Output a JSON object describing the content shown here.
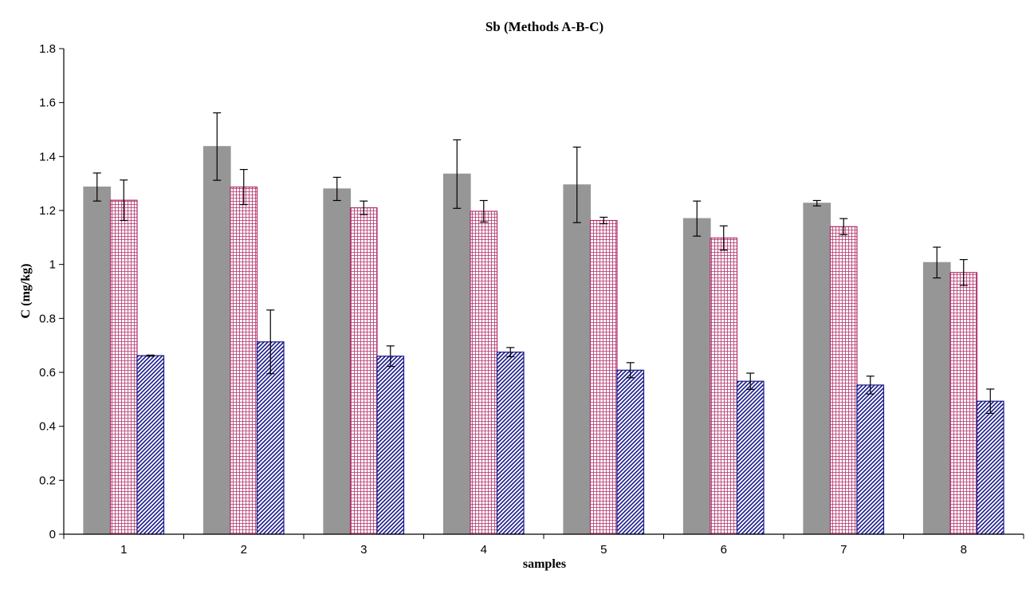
{
  "chart_data": {
    "type": "bar",
    "title": "Sb (Methods A-B-C)",
    "xlabel": "samples",
    "ylabel": "C (mg/kg)",
    "ylim": [
      0,
      1.8
    ],
    "yticks": [
      "0",
      "0.2",
      "0.4",
      "0.6",
      "0.8",
      "1",
      "1.2",
      "1.4",
      "1.6",
      "1.8"
    ],
    "categories": [
      "1",
      "2",
      "3",
      "4",
      "5",
      "6",
      "7",
      "8"
    ],
    "grid": false,
    "series": [
      {
        "values": [
          1.287,
          1.437,
          1.28,
          1.335,
          1.295,
          1.17,
          1.227,
          1.007
        ],
        "errors": [
          0.052,
          0.125,
          0.043,
          0.127,
          0.14,
          0.065,
          0.01,
          0.057
        ],
        "color": "#969696",
        "pattern": "solid"
      },
      {
        "values": [
          1.238,
          1.287,
          1.21,
          1.197,
          1.163,
          1.098,
          1.14,
          0.97
        ],
        "errors": [
          0.075,
          0.065,
          0.025,
          0.04,
          0.012,
          0.045,
          0.03,
          0.048
        ],
        "color": "#b0306a",
        "pattern": "grid"
      },
      {
        "values": [
          0.662,
          0.713,
          0.66,
          0.675,
          0.608,
          0.567,
          0.553,
          0.493
        ],
        "errors": [
          0.002,
          0.118,
          0.038,
          0.017,
          0.028,
          0.03,
          0.033,
          0.045
        ],
        "color": "#1a1a8c",
        "pattern": "diagonal"
      }
    ]
  }
}
